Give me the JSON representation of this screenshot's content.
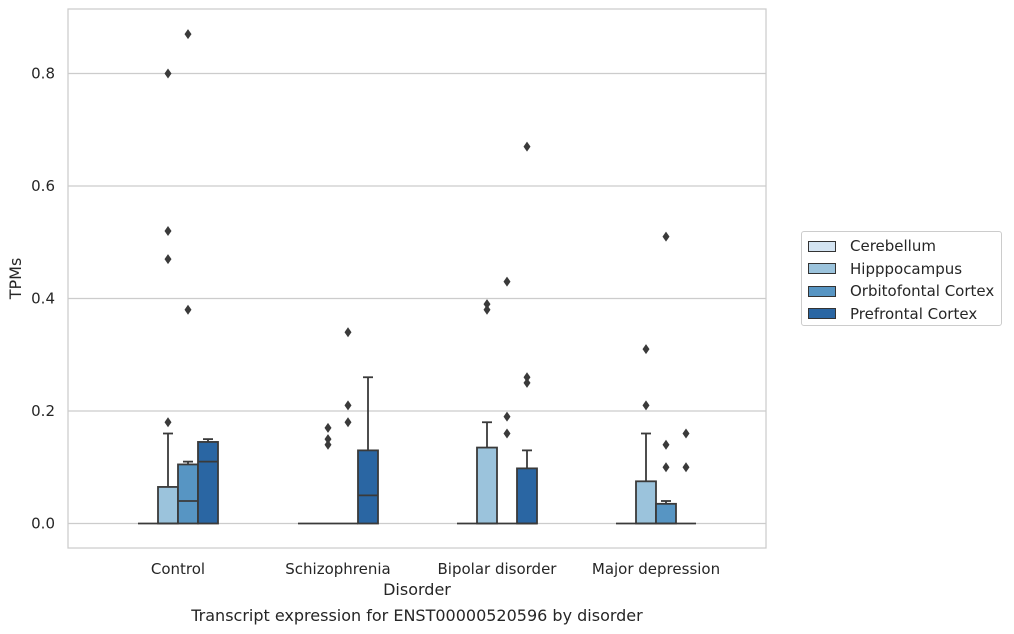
{
  "chart_data": {
    "type": "box",
    "title": "",
    "caption": "Transcript expression for ENST00000520596 by disorder",
    "xlabel": "Disorder",
    "ylabel": "TPMs",
    "ylim": [
      -0.043,
      0.915
    ],
    "yticks": [
      "0.0",
      "0.2",
      "0.4",
      "0.6",
      "0.8"
    ],
    "ytick_values": [
      0.0,
      0.2,
      0.4,
      0.6,
      0.8
    ],
    "grid": "horizontal",
    "legend_position": "right",
    "categories": [
      "Control",
      "Schizophrenia",
      "Bipolar disorder",
      "Major depression"
    ],
    "series": [
      {
        "name": "Cerebellum",
        "color": "#d4e4f2",
        "boxes": [
          {
            "q1": 0,
            "median": 0,
            "q3": 0,
            "whisker_low": 0,
            "whisker_high": 0,
            "outliers": []
          },
          {
            "q1": 0,
            "median": 0,
            "q3": 0,
            "whisker_low": 0,
            "whisker_high": 0,
            "outliers": []
          },
          {
            "q1": 0,
            "median": 0,
            "q3": 0,
            "whisker_low": 0,
            "whisker_high": 0,
            "outliers": []
          },
          {
            "q1": 0,
            "median": 0,
            "q3": 0,
            "whisker_low": 0,
            "whisker_high": 0,
            "outliers": []
          }
        ]
      },
      {
        "name": "Hipppocampus",
        "color": "#9bc3dc",
        "boxes": [
          {
            "q1": 0,
            "median": 0,
            "q3": 0.065,
            "whisker_low": 0,
            "whisker_high": 0.16,
            "outliers": [
              0.18,
              0.8,
              0.52,
              0.47
            ]
          },
          {
            "q1": 0,
            "median": 0,
            "q3": 0,
            "whisker_low": 0,
            "whisker_high": 0,
            "outliers": [
              0.17,
              0.15,
              0.14
            ]
          },
          {
            "q1": 0,
            "median": 0,
            "q3": 0.135,
            "whisker_low": 0,
            "whisker_high": 0.18,
            "outliers": [
              0.39,
              0.38
            ]
          },
          {
            "q1": 0,
            "median": 0,
            "q3": 0.075,
            "whisker_low": 0,
            "whisker_high": 0.16,
            "outliers": [
              0.31,
              0.21
            ]
          }
        ]
      },
      {
        "name": "Orbitofontal Cortex",
        "color": "#5795c3",
        "boxes": [
          {
            "q1": 0,
            "median": 0.04,
            "q3": 0.105,
            "whisker_low": 0,
            "whisker_high": 0.11,
            "outliers": [
              0.87,
              0.38
            ]
          },
          {
            "q1": 0,
            "median": 0,
            "q3": 0,
            "whisker_low": 0,
            "whisker_high": 0,
            "outliers": [
              0.34,
              0.21,
              0.18
            ]
          },
          {
            "q1": 0,
            "median": 0,
            "q3": 0,
            "whisker_low": 0,
            "whisker_high": 0,
            "outliers": [
              0.43,
              0.19,
              0.16
            ]
          },
          {
            "q1": 0,
            "median": 0,
            "q3": 0.035,
            "whisker_low": 0,
            "whisker_high": 0.04,
            "outliers": [
              0.51,
              0.14,
              0.1
            ]
          }
        ]
      },
      {
        "name": "Prefrontal Cortex",
        "color": "#2a66a3",
        "boxes": [
          {
            "q1": 0,
            "median": 0.11,
            "q3": 0.145,
            "whisker_low": 0,
            "whisker_high": 0.15,
            "outliers": []
          },
          {
            "q1": 0,
            "median": 0.05,
            "q3": 0.13,
            "whisker_low": 0,
            "whisker_high": 0.26,
            "outliers": []
          },
          {
            "q1": 0,
            "median": 0,
            "q3": 0.098,
            "whisker_low": 0,
            "whisker_high": 0.13,
            "outliers": [
              0.67,
              0.26,
              0.25
            ]
          },
          {
            "q1": 0,
            "median": 0,
            "q3": 0,
            "whisker_low": 0,
            "whisker_high": 0,
            "outliers": [
              0.16,
              0.1
            ]
          }
        ]
      }
    ]
  }
}
